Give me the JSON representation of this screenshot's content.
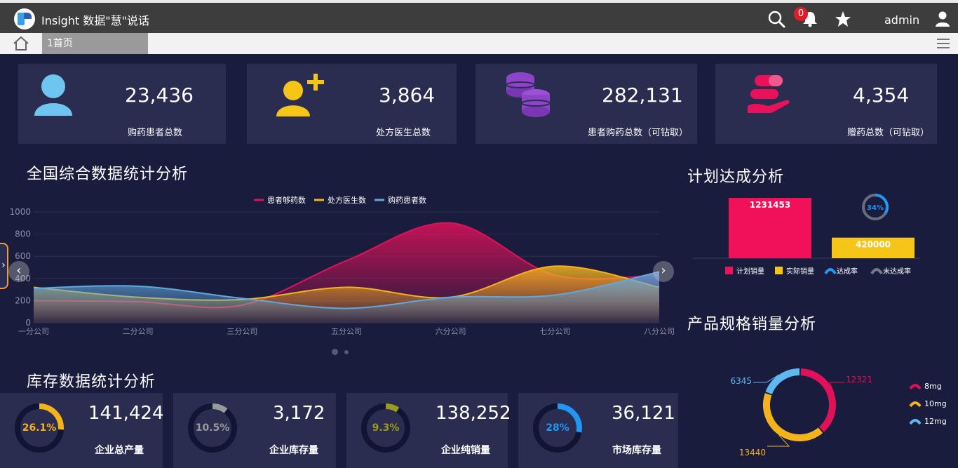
{
  "header": {
    "title": "Insight 数据\"慧\"说话",
    "notifications": "0",
    "user": "admin"
  },
  "tabs": {
    "active": "1首页"
  },
  "stats": [
    {
      "value": "23,436",
      "label": "购药患者总数",
      "icon": "user-icon",
      "color": "#6ec6f0"
    },
    {
      "value": "3,864",
      "label": "处方医生总数",
      "icon": "add-user-icon",
      "color": "#f5c518"
    },
    {
      "value": "282,131",
      "label": "患者购药总数（可钻取）",
      "icon": "coins-icon",
      "color": "#8e44c9"
    },
    {
      "value": "4,354",
      "label": "赠药总数（可钻取）",
      "icon": "pill-hand-icon",
      "color": "#e8115a"
    }
  ],
  "sections": {
    "national": "全国综合数据统计分析",
    "inventory": "库存数据统计分析",
    "plan": "计划达成分析",
    "spec": "产品规格销量分析"
  },
  "chart_data": [
    {
      "type": "area",
      "categories": [
        "一分公司",
        "二分公司",
        "三分公司",
        "五分公司",
        "六分公司",
        "七分公司",
        "八分公司"
      ],
      "ylim": [
        0,
        1000
      ],
      "yticks": [
        0,
        200,
        400,
        600,
        800,
        1000
      ],
      "series": [
        {
          "name": "患者够药数",
          "color": "#e0115a",
          "values": [
            200,
            190,
            160,
            560,
            900,
            430,
            430
          ]
        },
        {
          "name": "处方医生数",
          "color": "#f5b31b",
          "values": [
            320,
            230,
            210,
            320,
            230,
            510,
            320
          ]
        },
        {
          "name": "购药患者数",
          "color": "#5fa8e0",
          "values": [
            310,
            330,
            220,
            130,
            230,
            250,
            460
          ]
        }
      ],
      "legend": "top-center"
    },
    {
      "type": "bar",
      "categories": [
        "计划销量",
        "实际销量"
      ],
      "values": [
        1231453,
        420000
      ],
      "labels": [
        "1231453",
        "420000"
      ],
      "colors": [
        "#f0115a",
        "#f5c518"
      ],
      "gauge": {
        "value": 34,
        "label": "34%"
      },
      "legend": [
        "计划销量",
        "实际销量",
        "达成率",
        "未达成率"
      ]
    },
    {
      "type": "pie",
      "slices": [
        {
          "name": "8mg",
          "value": 12321,
          "label": "12321",
          "color": "#e0115a"
        },
        {
          "name": "10mg",
          "value": 13440,
          "label": "13440",
          "color": "#f5b31b"
        },
        {
          "name": "12mg",
          "value": 6345,
          "label": "6345",
          "color": "#5fb8f0"
        }
      ]
    }
  ],
  "inventory": [
    {
      "value": "141,424",
      "label": "企业总产量",
      "percent": 26.1,
      "pct_label": "26.1%",
      "color": "#f5b31b"
    },
    {
      "value": "3,172",
      "label": "企业库存量",
      "percent": 10.5,
      "pct_label": "10.5%",
      "color": "#9a9a9a"
    },
    {
      "value": "138,252",
      "label": "企业纯销量",
      "percent": 9.3,
      "pct_label": "9.3%",
      "color": "#9a9a20"
    },
    {
      "value": "36,121",
      "label": "市场库存量",
      "percent": 28,
      "pct_label": "28%",
      "color": "#2196f3"
    }
  ]
}
